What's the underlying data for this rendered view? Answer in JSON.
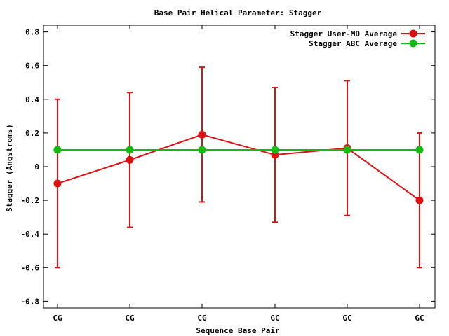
{
  "chart_data": {
    "type": "line",
    "title": "Base Pair Helical Parameter: Stagger",
    "xlabel": "Sequence Base Pair",
    "ylabel": "Stagger (Angstroms)",
    "categories": [
      "CG",
      "CG",
      "CG",
      "GC",
      "GC",
      "GC"
    ],
    "ylim": [
      -0.84,
      0.84
    ],
    "yticks": [
      -0.8,
      -0.6,
      -0.4,
      -0.2,
      0,
      0.2,
      0.4,
      0.6,
      0.8
    ],
    "ytick_labels": [
      "-0.8",
      "-0.6",
      "-0.4",
      "-0.2",
      "0",
      "0.2",
      "0.4",
      "0.6",
      "0.8"
    ],
    "grid": false,
    "legend_position": "top-right",
    "series": [
      {
        "name": "Stagger User-MD Average",
        "color": "#dd1111",
        "values": [
          -0.1,
          0.04,
          0.19,
          0.07,
          0.11,
          -0.2
        ],
        "error_low": [
          -0.6,
          -0.36,
          -0.21,
          -0.33,
          -0.29,
          -0.6
        ],
        "error_high": [
          0.4,
          0.44,
          0.59,
          0.47,
          0.51,
          0.2
        ]
      },
      {
        "name": "Stagger ABC Average",
        "color": "#11bb11",
        "values": [
          0.1,
          0.1,
          0.1,
          0.1,
          0.1,
          0.1
        ]
      }
    ]
  }
}
